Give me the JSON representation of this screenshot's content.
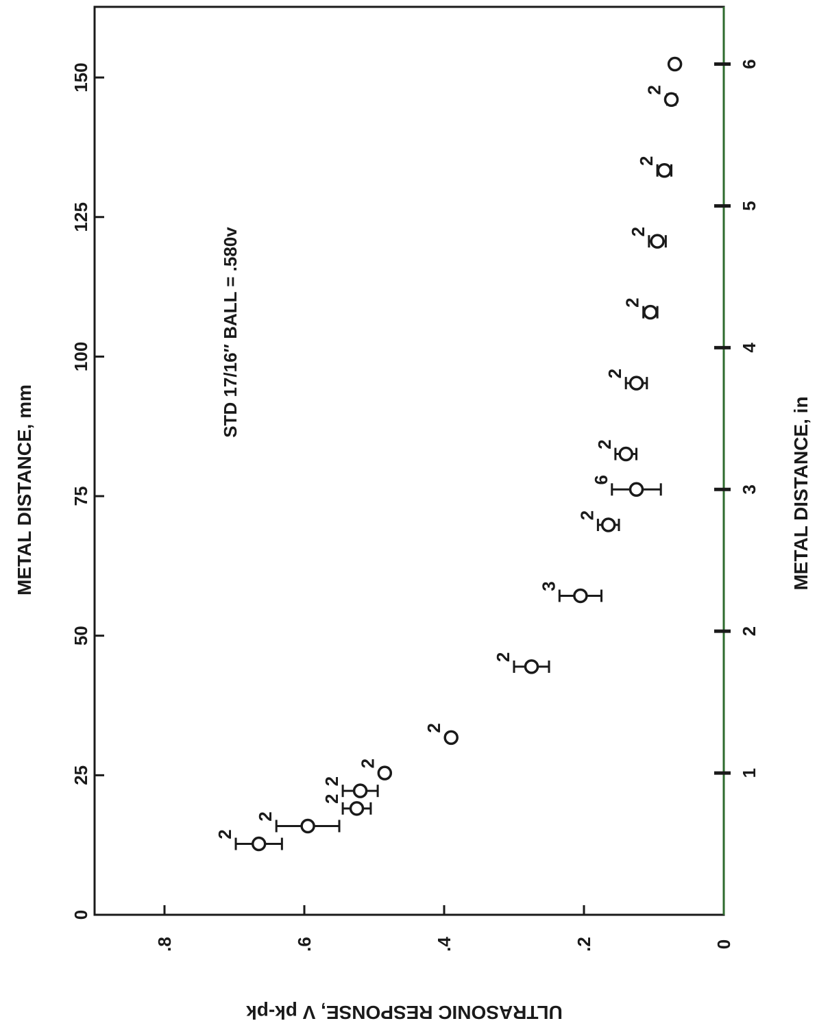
{
  "chart_data": {
    "type": "scatter",
    "orientation": "rotated-90-cw",
    "title": "",
    "annotation": "STD 17/16″ BALL = .580v",
    "xlabel_top": "METAL DISTANCE, mm",
    "xlabel_bottom": "METAL DISTANCE, in",
    "ylabel": "ULTRASONIC RESPONSE,  V pk-pk",
    "x_mm_ticks": [
      "0",
      "25",
      "50",
      "75",
      "100",
      "125",
      "150"
    ],
    "x_in_ticks": [
      "1",
      "2",
      "3",
      "4",
      "5",
      "6"
    ],
    "y_ticks": [
      "0",
      ".2",
      ".4",
      ".6",
      ".8"
    ],
    "xlim_mm": [
      0,
      162.5
    ],
    "ylim": [
      0,
      0.9
    ],
    "grid": false,
    "points": [
      {
        "x_mm": 12.7,
        "y": 0.665,
        "err": 0.033,
        "n": "2"
      },
      {
        "x_mm": 15.9,
        "y": 0.595,
        "err": 0.045,
        "n": "2"
      },
      {
        "x_mm": 19.05,
        "y": 0.525,
        "err": 0.02,
        "n": "2"
      },
      {
        "x_mm": 22.2,
        "y": 0.52,
        "err": 0.025,
        "n": "2"
      },
      {
        "x_mm": 25.4,
        "y": 0.485,
        "err": 0.005,
        "n": "2"
      },
      {
        "x_mm": 31.75,
        "y": 0.39,
        "err": 0.004,
        "n": "2"
      },
      {
        "x_mm": 44.45,
        "y": 0.275,
        "err": 0.025,
        "n": "2"
      },
      {
        "x_mm": 57.15,
        "y": 0.205,
        "err": 0.03,
        "n": "3"
      },
      {
        "x_mm": 69.85,
        "y": 0.165,
        "err": 0.015,
        "n": "2"
      },
      {
        "x_mm": 76.2,
        "y": 0.125,
        "err": 0.035,
        "n": "6"
      },
      {
        "x_mm": 82.55,
        "y": 0.14,
        "err": 0.015,
        "n": "2"
      },
      {
        "x_mm": 95.25,
        "y": 0.125,
        "err": 0.015,
        "n": "2"
      },
      {
        "x_mm": 107.95,
        "y": 0.105,
        "err": 0.01,
        "n": "2"
      },
      {
        "x_mm": 120.65,
        "y": 0.095,
        "err": 0.012,
        "n": "2"
      },
      {
        "x_mm": 133.35,
        "y": 0.085,
        "err": 0.01,
        "n": "2"
      },
      {
        "x_mm": 146.05,
        "y": 0.075,
        "err": 0.006,
        "n": "2"
      },
      {
        "x_mm": 152.4,
        "y": 0.07,
        "err": 0.005,
        "n": ""
      }
    ]
  }
}
